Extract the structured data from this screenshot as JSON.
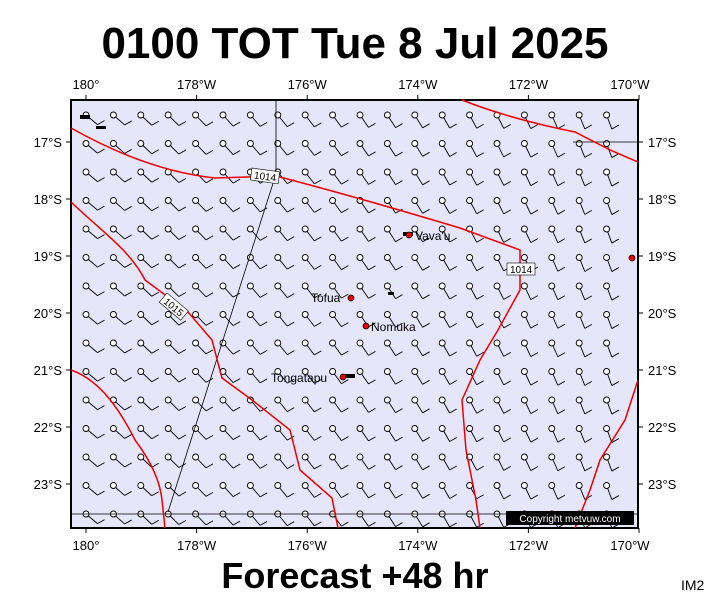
{
  "title": "0100 TOT Tue 8 Jul 2025",
  "subtitle": "Forecast +48 hr",
  "corner_label": "IM2",
  "copyright": "Copyright metvuw.com",
  "lon_labels": [
    "180°",
    "178°W",
    "176°W",
    "174°W",
    "172°W",
    "170°W"
  ],
  "lat_labels": [
    "17°S",
    "18°S",
    "19°S",
    "20°S",
    "21°S",
    "22°S",
    "23°S"
  ],
  "places": [
    {
      "name": "Vava'u"
    },
    {
      "name": "Tofua"
    },
    {
      "name": "Nomuka"
    },
    {
      "name": "Tongatapu"
    }
  ],
  "isobar_labels": [
    "1014",
    "1014",
    "1015"
  ]
}
